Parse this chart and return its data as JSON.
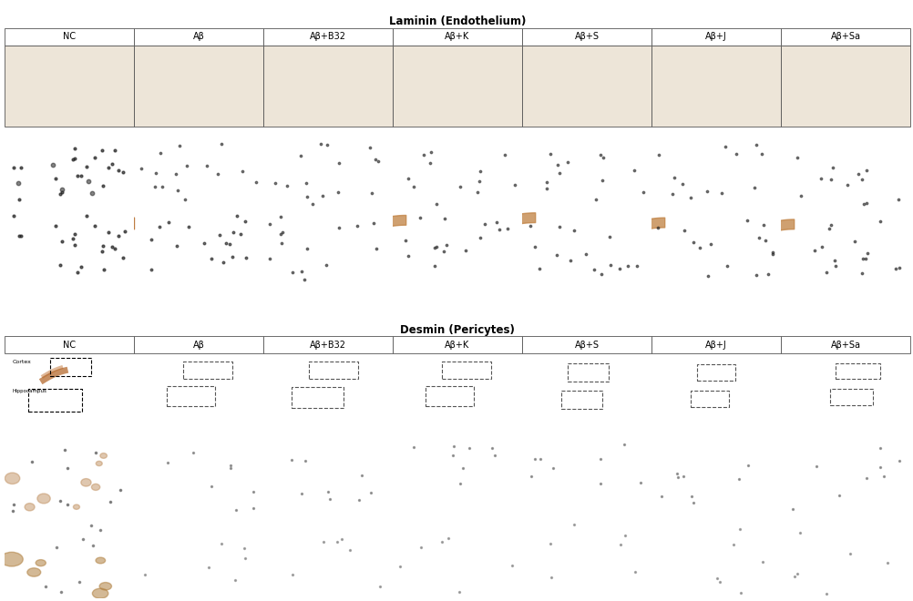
{
  "title1": "Laminin (Endothelium)",
  "title2": "Desmin (Pericytes)",
  "col_labels": [
    "NC",
    "Aβ",
    "Aβ+B32",
    "Aβ+K",
    "Aβ+S",
    "Aβ+J",
    "Aβ+Sa"
  ],
  "bg_color": "#ffffff",
  "figure_width": 10.02,
  "figure_height": 6.6,
  "title_fontsize": 8.5,
  "label_fontsize": 7,
  "annot_fontsize": 5,
  "border_color": "#555555",
  "border_lw": 0.6,
  "header_bg": "#ffffff",
  "p1_row0_bg": "#f0ebe3",
  "p1_row1_bg": "#ede8e0",
  "p1_row2_bg": "#ece7df",
  "p2_row0_bg": "#f2ede5",
  "p2_row1_bg": "#f0ebe3",
  "p2_row2_bg": "#ede8e0",
  "tissue_brown": "#a0622a",
  "tissue_light": "#c8905a",
  "tissue_dark": "#7a4010",
  "cell_dot_color": "#333333",
  "gap_color": "#cccccc"
}
